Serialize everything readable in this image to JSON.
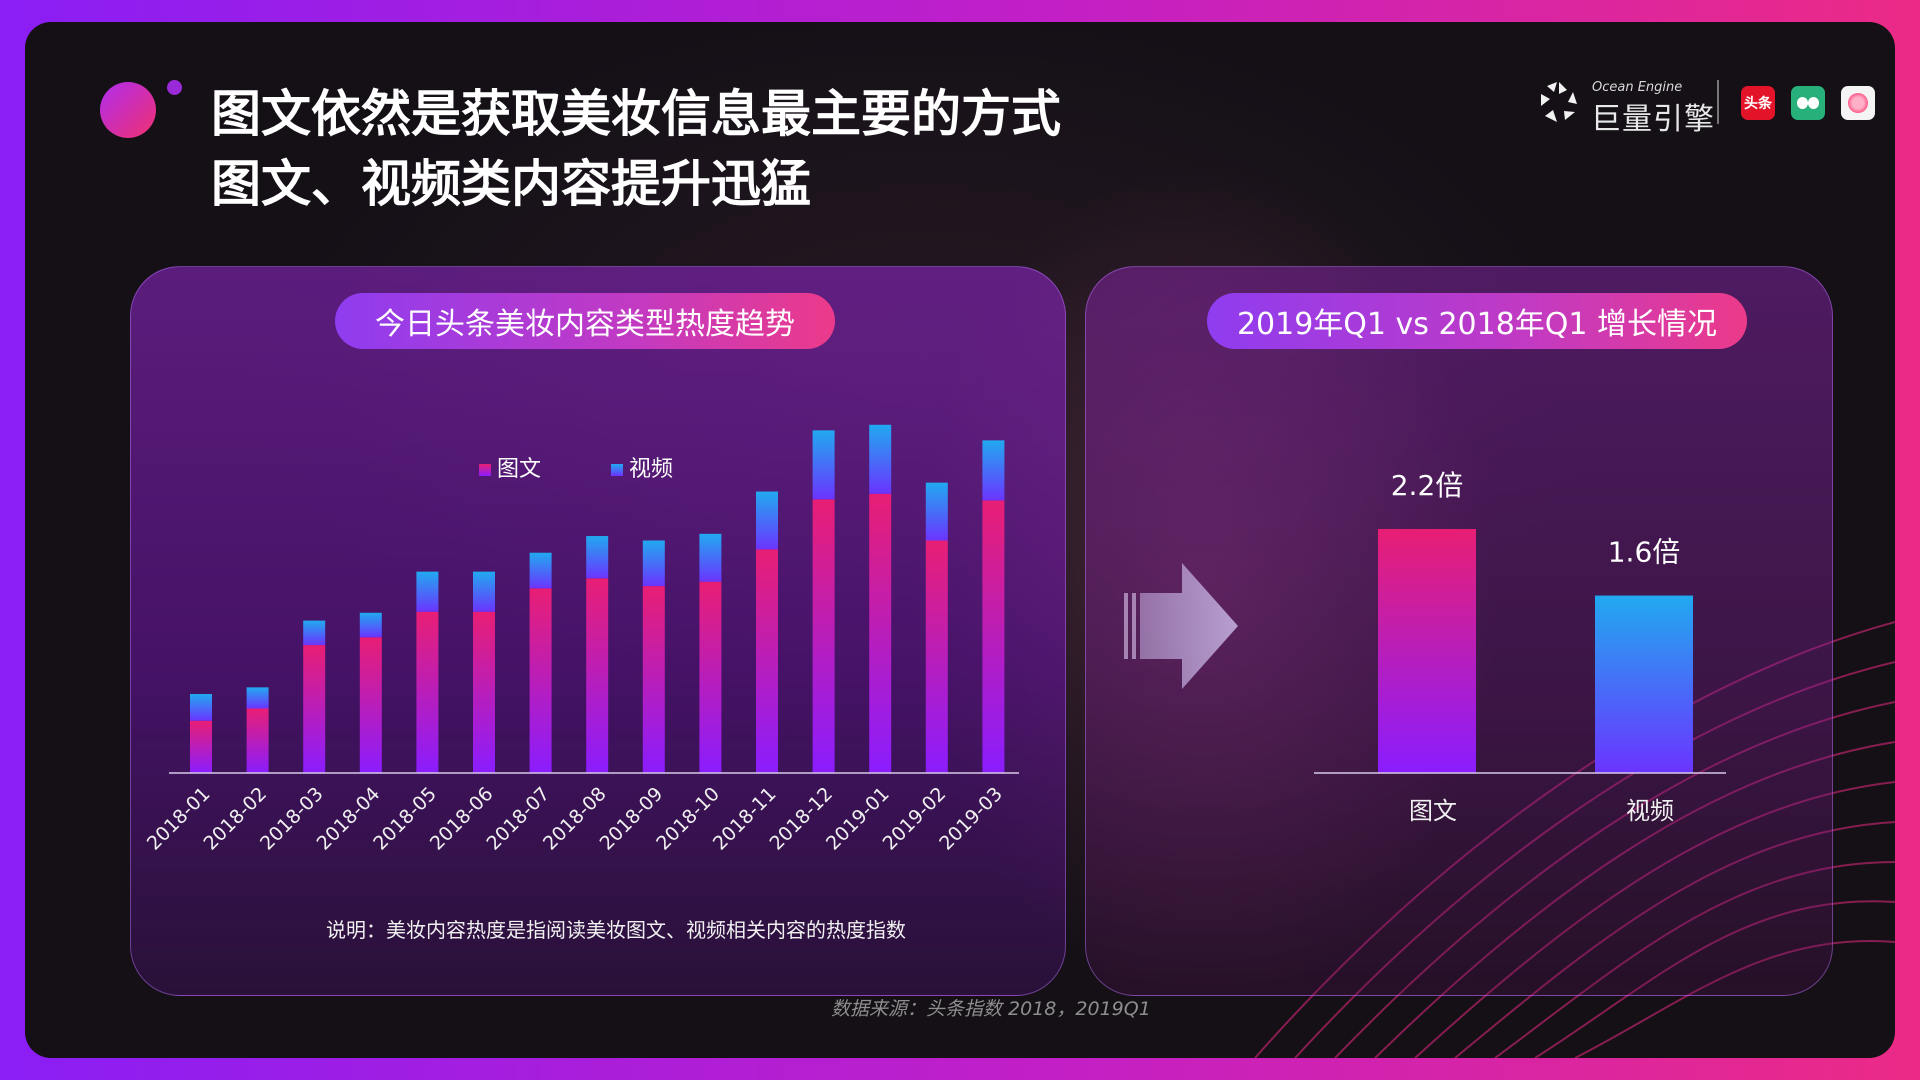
{
  "title": {
    "line1": "图文依然是获取美妆信息最主要的方式",
    "line2": "图文、视频类内容提升迅猛"
  },
  "brand": {
    "sub": "Ocean Engine",
    "name": "巨量引擎",
    "app1_text": "头条"
  },
  "colors": {
    "tuwen_top": "#e81e74",
    "tuwen_bottom": "#8a1dff",
    "video_top": "#21a9f0",
    "video_bottom": "#6b34ff"
  },
  "left_panel": {
    "title": "今日头条美妆内容类型热度趋势",
    "note": "说明：美妆内容热度是指阅读美妆图文、视频相关内容的热度指数"
  },
  "right_panel": {
    "title": "2019年Q1 vs 2018年Q1 增长情况"
  },
  "source": "数据来源：头条指数  2018，2019Q1",
  "chart_data": [
    {
      "type": "bar",
      "stacked": true,
      "categories": [
        "2018-01",
        "2018-02",
        "2018-03",
        "2018-04",
        "2018-05",
        "2018-06",
        "2018-07",
        "2018-08",
        "2018-09",
        "2018-10",
        "2018-11",
        "2018-12",
        "2019-01",
        "2019-02",
        "2019-03"
      ],
      "series": [
        {
          "name": "图文",
          "values": [
            47,
            58,
            115,
            122,
            145,
            145,
            166,
            175,
            168,
            172,
            201,
            246,
            251,
            209,
            245
          ]
        },
        {
          "name": "视频",
          "values": [
            24,
            19,
            22,
            22,
            36,
            36,
            32,
            38,
            41,
            43,
            52,
            62,
            62,
            52,
            54
          ]
        }
      ],
      "title": "今日头条美妆内容类型热度趋势",
      "legend_position": "top-center",
      "grid": false,
      "ylim": [
        0,
        320
      ]
    },
    {
      "type": "bar",
      "categories": [
        "图文",
        "视频"
      ],
      "values": [
        2.2,
        1.6
      ],
      "data_labels": [
        "2.2倍",
        "1.6倍"
      ],
      "title": "2019年Q1 vs 2018年Q1 增长情况",
      "grid": false,
      "ylim": [
        0,
        3.3
      ]
    }
  ]
}
